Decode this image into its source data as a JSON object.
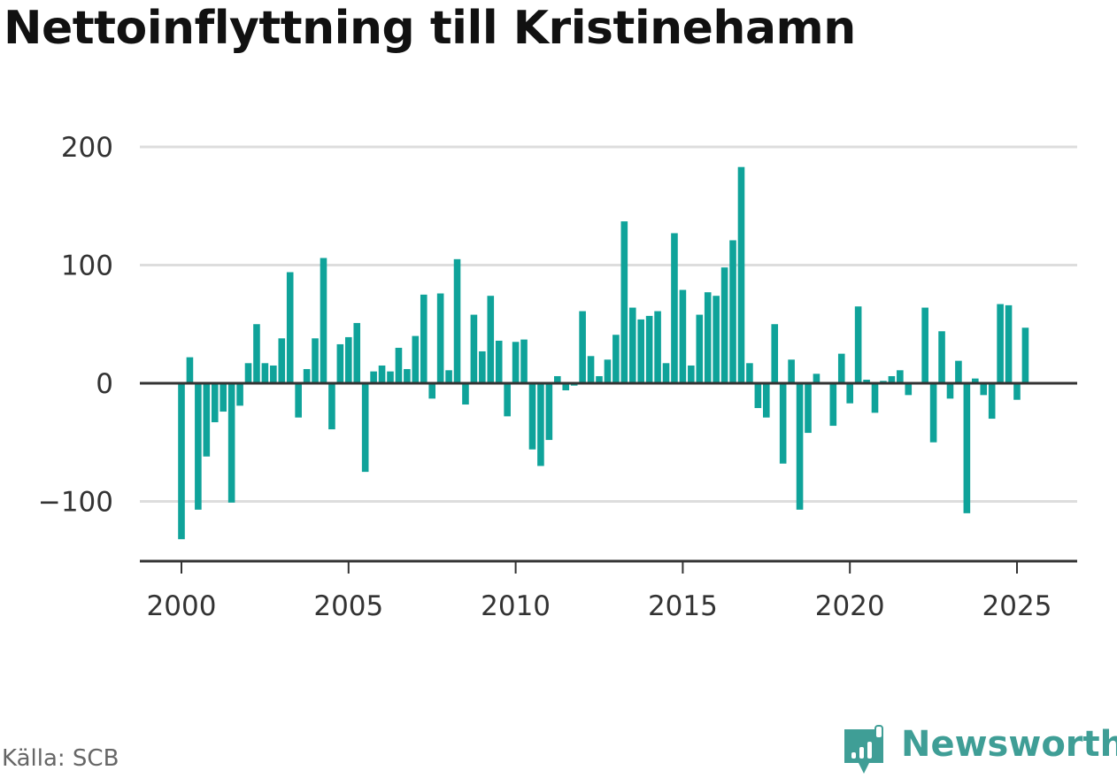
{
  "title": "Nettoinflyttning till Kristinehamn",
  "source": "Källa: SCB",
  "brand": {
    "name": "Newsworthy",
    "icon": "newsworthy-logo-icon",
    "color": "#3f9e96"
  },
  "colors": {
    "bar": "#0fa39a",
    "grid": "#dddddd",
    "zero_line": "#333333",
    "axis": "#333333"
  },
  "chart_data": {
    "type": "bar",
    "title": "Nettoinflyttning till Kristinehamn",
    "xlabel": "",
    "ylabel": "",
    "ylim": [
      -150,
      200
    ],
    "xlim": [
      1999.5,
      2026.3
    ],
    "yticks": [
      200,
      100,
      0,
      -100
    ],
    "ytick_labels": [
      "200",
      "100",
      "0",
      "−100"
    ],
    "xticks": [
      2000,
      2005,
      2010,
      2015,
      2020,
      2025
    ],
    "xtick_labels": [
      "2000",
      "2005",
      "2010",
      "2015",
      "2020",
      "2025"
    ],
    "grid": true,
    "legend": "none",
    "x": [
      2000.0,
      2000.25,
      2000.5,
      2000.75,
      2001.0,
      2001.25,
      2001.5,
      2001.75,
      2002.0,
      2002.25,
      2002.5,
      2002.75,
      2003.0,
      2003.25,
      2003.5,
      2003.75,
      2004.0,
      2004.25,
      2004.5,
      2004.75,
      2005.0,
      2005.25,
      2005.5,
      2005.75,
      2006.0,
      2006.25,
      2006.5,
      2006.75,
      2007.0,
      2007.25,
      2007.5,
      2007.75,
      2008.0,
      2008.25,
      2008.5,
      2008.75,
      2009.0,
      2009.25,
      2009.5,
      2009.75,
      2010.0,
      2010.25,
      2010.5,
      2010.75,
      2011.0,
      2011.25,
      2011.5,
      2011.75,
      2012.0,
      2012.25,
      2012.5,
      2012.75,
      2013.0,
      2013.25,
      2013.5,
      2013.75,
      2014.0,
      2014.25,
      2014.5,
      2014.75,
      2015.0,
      2015.25,
      2015.5,
      2015.75,
      2016.0,
      2016.25,
      2016.5,
      2016.75,
      2017.0,
      2017.25,
      2017.5,
      2017.75,
      2018.0,
      2018.25,
      2018.5,
      2018.75,
      2019.0,
      2019.25,
      2019.5,
      2019.75,
      2020.0,
      2020.25,
      2020.5,
      2020.75,
      2021.0,
      2021.25,
      2021.5,
      2021.75,
      2022.0,
      2022.25,
      2022.5,
      2022.75,
      2023.0,
      2023.25,
      2023.5,
      2023.75,
      2024.0,
      2024.25,
      2024.5,
      2024.75,
      2025.0,
      2025.25
    ],
    "values": [
      -132,
      22,
      -107,
      -62,
      -33,
      -24,
      -101,
      -19,
      17,
      50,
      17,
      15,
      38,
      94,
      -29,
      12,
      38,
      106,
      -39,
      33,
      39,
      51,
      -75,
      10,
      15,
      10,
      30,
      12,
      40,
      75,
      -13,
      76,
      11,
      105,
      -18,
      58,
      27,
      74,
      36,
      -28,
      35,
      37,
      -56,
      -70,
      -48,
      6,
      -6,
      -2,
      61,
      23,
      6,
      20,
      41,
      137,
      64,
      54,
      57,
      61,
      17,
      127,
      79,
      15,
      58,
      77,
      74,
      98,
      121,
      183,
      17,
      -21,
      -29,
      50,
      -68,
      20,
      -107,
      -42,
      8,
      0,
      -36,
      25,
      -17,
      65,
      3,
      -25,
      2,
      6,
      11,
      -10,
      0,
      64,
      -50,
      44,
      -13,
      19,
      -110,
      4,
      -10,
      -30,
      67,
      66,
      -14,
      47
    ]
  }
}
